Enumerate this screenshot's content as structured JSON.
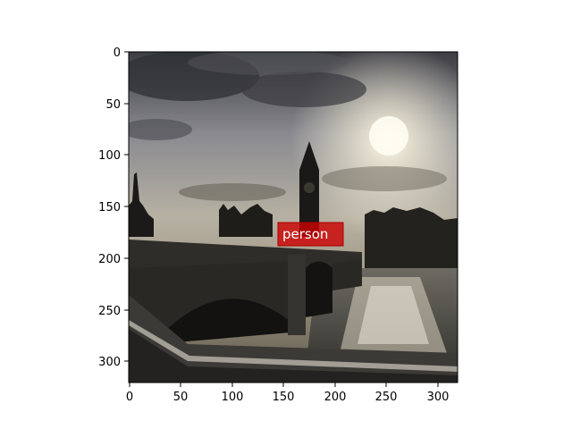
{
  "figure": {
    "image_scene": "photo-westminster-bridge-big-ben-sunset",
    "x_ticks": [
      "0",
      "50",
      "100",
      "150",
      "200",
      "250",
      "300"
    ],
    "y_ticks": [
      "0",
      "50",
      "100",
      "150",
      "200",
      "250",
      "300"
    ],
    "detections": [
      {
        "label": "person",
        "color": "#cc0000"
      }
    ]
  }
}
